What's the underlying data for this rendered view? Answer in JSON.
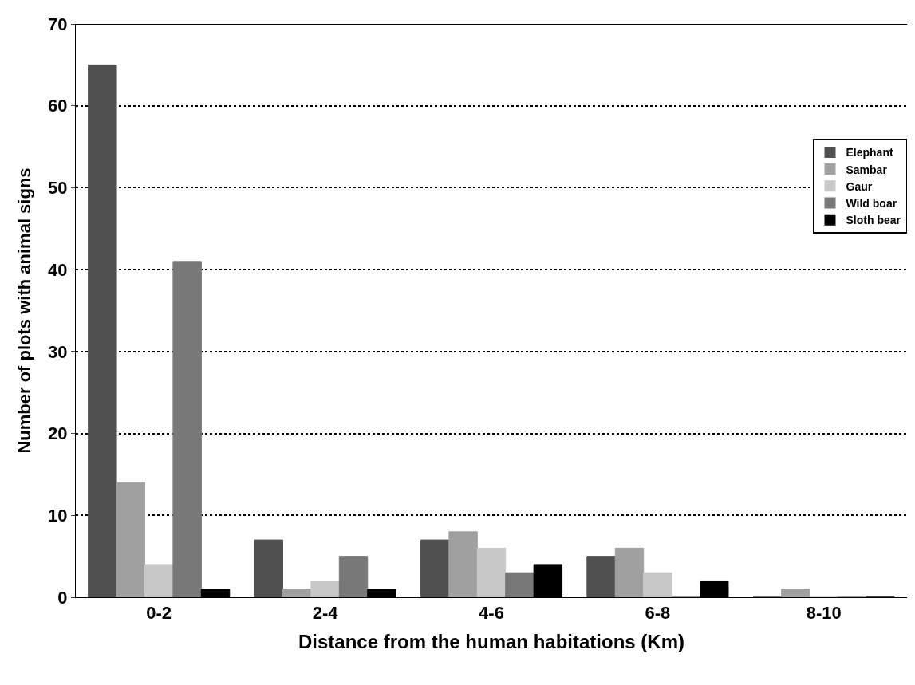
{
  "chart_data": {
    "type": "bar",
    "xlabel": "Distance from the human habitations (Km)",
    "ylabel": "Number of plots with animal signs",
    "categories": [
      "0-2",
      "2-4",
      "4-6",
      "6-8",
      "8-10"
    ],
    "series": [
      {
        "name": "Elephant",
        "color": "#505050",
        "values": [
          65,
          7,
          7,
          5,
          0
        ]
      },
      {
        "name": "Sambar",
        "color": "#a0a0a0",
        "values": [
          14,
          1,
          8,
          6,
          1
        ]
      },
      {
        "name": "Gaur",
        "color": "#c8c8c8",
        "values": [
          4,
          2,
          6,
          3,
          0
        ]
      },
      {
        "name": "Wild boar",
        "color": "#787878",
        "values": [
          41,
          5,
          3,
          0,
          0
        ]
      },
      {
        "name": "Sloth bear",
        "color": "#000000",
        "values": [
          1,
          1,
          4,
          2,
          0
        ]
      }
    ],
    "ylim": [
      0,
      70
    ],
    "yticks": [
      0,
      10,
      20,
      30,
      40,
      50,
      60,
      70
    ],
    "grid": "y",
    "legend": "right"
  }
}
